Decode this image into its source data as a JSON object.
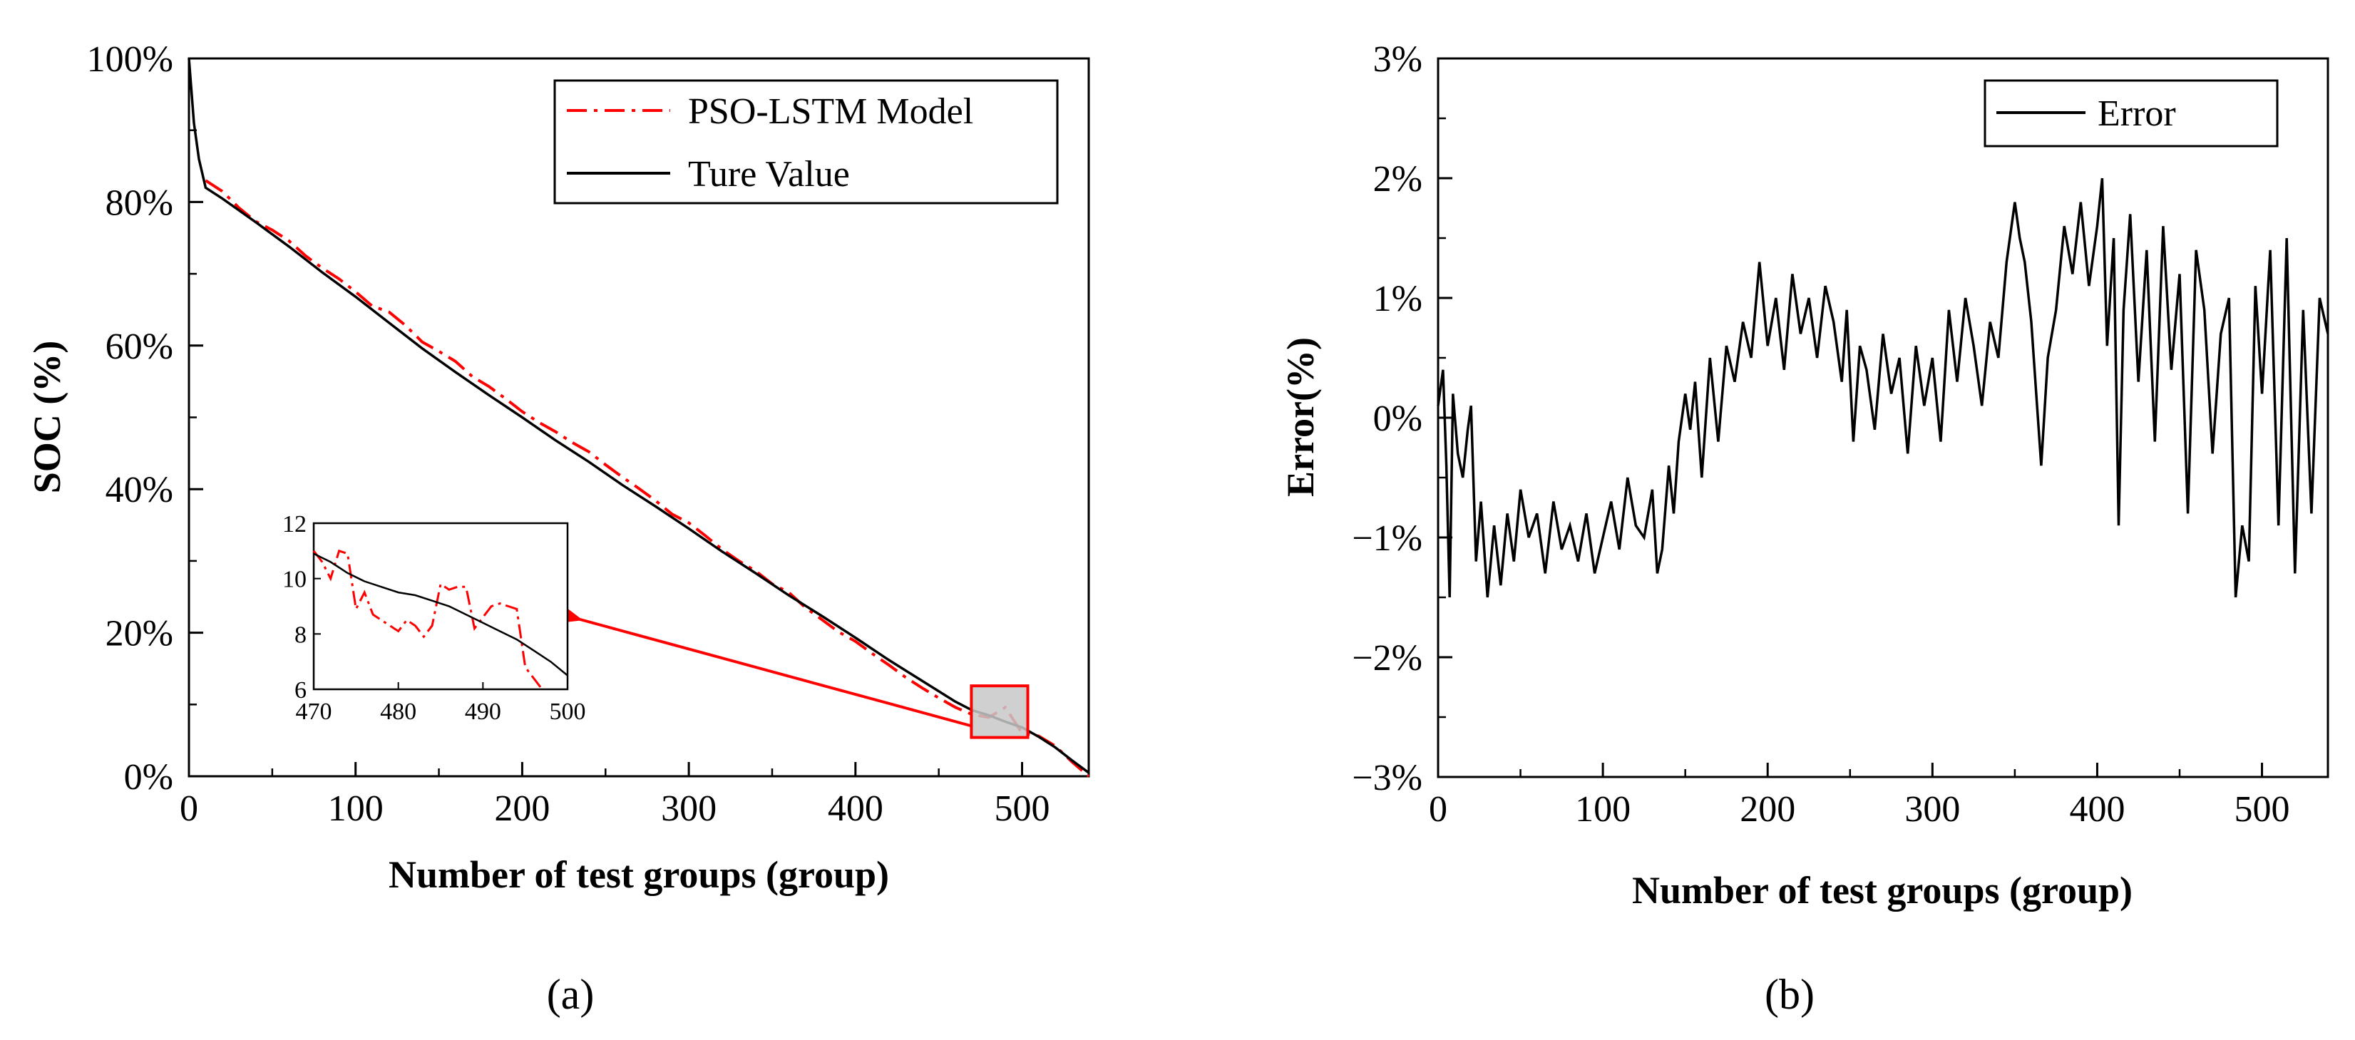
{
  "colors": {
    "true_line": "#000000",
    "model_line": "#ff0000",
    "zoom_box": "#c8c8c8"
  },
  "panels": {
    "a": {
      "label": "(a)"
    },
    "b": {
      "label": "(b)"
    }
  },
  "chart_data": [
    {
      "id": "a",
      "type": "line",
      "xlabel": "Number of test groups (group)",
      "ylabel": "SOC (%)",
      "xlim": [
        0,
        540
      ],
      "ylim": [
        0,
        100
      ],
      "xticks": [
        0,
        100,
        200,
        300,
        400,
        500
      ],
      "xtick_labels": [
        "0",
        "100",
        "200",
        "300",
        "400",
        "500"
      ],
      "yticks": [
        0,
        20,
        40,
        60,
        80,
        100
      ],
      "ytick_labels": [
        "0%",
        "20%",
        "40%",
        "60%",
        "80%",
        "100%"
      ],
      "legend": {
        "placement": "top-right",
        "entries": [
          "PSO-LSTM Model",
          "Ture Value"
        ]
      },
      "series": [
        {
          "name": "Ture Value",
          "x": [
            0,
            3,
            6,
            10,
            20,
            40,
            60,
            80,
            100,
            120,
            140,
            160,
            180,
            200,
            220,
            240,
            260,
            280,
            300,
            320,
            340,
            360,
            380,
            400,
            420,
            440,
            460,
            470,
            480,
            490,
            500,
            510,
            520,
            530,
            540
          ],
          "y": [
            100,
            91,
            86,
            82,
            80.5,
            77.2,
            73.8,
            70.2,
            66.8,
            63.2,
            59.6,
            56.3,
            53.1,
            50.0,
            46.8,
            43.8,
            40.6,
            37.6,
            34.5,
            31.3,
            28.3,
            25.2,
            22.3,
            19.3,
            16.2,
            13.3,
            10.4,
            9.2,
            8.5,
            7.6,
            6.8,
            5.5,
            4.0,
            2.2,
            0.5
          ]
        },
        {
          "name": "PSO-LSTM Model",
          "x": [
            10,
            20,
            30,
            40,
            50,
            60,
            70,
            80,
            90,
            100,
            110,
            120,
            130,
            140,
            150,
            160,
            170,
            180,
            190,
            200,
            210,
            220,
            230,
            240,
            250,
            260,
            270,
            280,
            290,
            300,
            310,
            320,
            330,
            340,
            350,
            360,
            370,
            380,
            390,
            400,
            410,
            420,
            430,
            440,
            450,
            460,
            470,
            480,
            490,
            500,
            510,
            520,
            530,
            540
          ],
          "y": [
            83.0,
            81.5,
            79.2,
            77.3,
            76.1,
            74.6,
            72.5,
            70.8,
            69.3,
            67.5,
            65.5,
            64.7,
            62.8,
            60.5,
            59.2,
            57.8,
            55.7,
            54.3,
            52.6,
            50.8,
            49.3,
            48.0,
            46.5,
            45.2,
            43.4,
            41.7,
            40.1,
            38.4,
            36.5,
            35.3,
            33.5,
            31.6,
            30.0,
            28.6,
            26.8,
            25.6,
            23.5,
            21.8,
            20.1,
            18.8,
            17.1,
            15.5,
            13.8,
            12.3,
            10.9,
            9.6,
            8.6,
            8.2,
            9.6,
            6.0,
            5.6,
            4.2,
            2.0,
            0.0
          ]
        }
      ],
      "zoom_region": {
        "x": [
          473,
          500
        ],
        "y": [
          6,
          12
        ]
      },
      "inset": {
        "xlim": [
          470,
          500
        ],
        "ylim": [
          6,
          12
        ],
        "xticks": [
          470,
          480,
          490,
          500
        ],
        "xtick_labels": [
          "470",
          "480",
          "490",
          "500"
        ],
        "yticks": [
          6,
          8,
          10,
          12
        ],
        "ytick_labels": [
          "6",
          "8",
          "10",
          "12"
        ],
        "series": [
          {
            "name": "Ture Value",
            "x": [
              470,
              472,
              474,
              476,
              478,
              480,
              482,
              484,
              486,
              488,
              490,
              492,
              494,
              496,
              498,
              500
            ],
            "y": [
              10.9,
              10.6,
              10.2,
              9.9,
              9.7,
              9.5,
              9.4,
              9.2,
              9.0,
              8.7,
              8.4,
              8.1,
              7.8,
              7.4,
              7.0,
              6.5
            ]
          },
          {
            "name": "PSO-LSTM Model",
            "x": [
              470,
              471,
              472,
              473,
              474,
              475,
              476,
              477,
              478,
              479,
              480,
              481,
              482,
              483,
              484,
              485,
              486,
              487,
              488,
              489,
              490,
              491,
              492,
              493,
              494,
              495,
              496,
              497
            ],
            "y": [
              11.0,
              10.6,
              10.0,
              11.0,
              10.9,
              8.9,
              9.5,
              8.7,
              8.5,
              8.3,
              8.1,
              8.5,
              8.3,
              7.9,
              8.3,
              9.8,
              9.6,
              9.7,
              9.7,
              8.2,
              8.6,
              9.0,
              9.1,
              9.0,
              8.9,
              6.8,
              6.4,
              6.0
            ]
          }
        ]
      }
    },
    {
      "id": "b",
      "type": "line",
      "xlabel": "Number of test groups (group)",
      "ylabel": "Error(%)",
      "xlim": [
        0,
        540
      ],
      "ylim": [
        -3,
        3
      ],
      "xticks": [
        0,
        100,
        200,
        300,
        400,
        500
      ],
      "xtick_labels": [
        "0",
        "100",
        "200",
        "300",
        "400",
        "500"
      ],
      "yticks": [
        -3,
        -2,
        -1,
        0,
        1,
        2,
        3
      ],
      "ytick_labels": [
        "−3%",
        "−2%",
        "−1%",
        "0%",
        "1%",
        "2%",
        "3%"
      ],
      "legend": {
        "placement": "top-right",
        "entries": [
          "Error"
        ]
      },
      "series": [
        {
          "name": "Error",
          "x": [
            0,
            3,
            5,
            7,
            9,
            12,
            15,
            18,
            20,
            23,
            26,
            30,
            34,
            38,
            42,
            46,
            50,
            55,
            60,
            65,
            70,
            75,
            80,
            85,
            90,
            95,
            100,
            105,
            110,
            115,
            120,
            125,
            130,
            133,
            136,
            140,
            143,
            146,
            150,
            153,
            156,
            160,
            165,
            170,
            175,
            180,
            185,
            190,
            195,
            200,
            205,
            210,
            215,
            220,
            225,
            230,
            235,
            240,
            245,
            248,
            252,
            256,
            260,
            265,
            270,
            275,
            280,
            285,
            290,
            295,
            300,
            305,
            310,
            315,
            320,
            325,
            330,
            335,
            340,
            345,
            350,
            353,
            356,
            360,
            363,
            366,
            370,
            375,
            380,
            385,
            390,
            395,
            400,
            403,
            406,
            410,
            413,
            416,
            420,
            425,
            430,
            435,
            440,
            445,
            450,
            455,
            460,
            465,
            470,
            475,
            480,
            484,
            488,
            492,
            496,
            500,
            505,
            510,
            515,
            520,
            525,
            530,
            535,
            540
          ],
          "y": [
            0.1,
            0.4,
            -0.4,
            -1.5,
            0.2,
            -0.3,
            -0.5,
            -0.1,
            0.1,
            -1.2,
            -0.7,
            -1.5,
            -0.9,
            -1.4,
            -0.8,
            -1.2,
            -0.6,
            -1.0,
            -0.8,
            -1.3,
            -0.7,
            -1.1,
            -0.9,
            -1.2,
            -0.8,
            -1.3,
            -1.0,
            -0.7,
            -1.1,
            -0.5,
            -0.9,
            -1.0,
            -0.6,
            -1.3,
            -1.1,
            -0.4,
            -0.8,
            -0.2,
            0.2,
            -0.1,
            0.3,
            -0.5,
            0.5,
            -0.2,
            0.6,
            0.3,
            0.8,
            0.5,
            1.3,
            0.6,
            1.0,
            0.4,
            1.2,
            0.7,
            1.0,
            0.5,
            1.1,
            0.8,
            0.3,
            0.9,
            -0.2,
            0.6,
            0.4,
            -0.1,
            0.7,
            0.2,
            0.5,
            -0.3,
            0.6,
            0.1,
            0.5,
            -0.2,
            0.9,
            0.3,
            1.0,
            0.6,
            0.1,
            0.8,
            0.5,
            1.3,
            1.8,
            1.5,
            1.3,
            0.8,
            0.2,
            -0.4,
            0.5,
            0.9,
            1.6,
            1.2,
            1.8,
            1.1,
            1.6,
            2.0,
            0.6,
            1.5,
            -0.9,
            0.9,
            1.7,
            0.3,
            1.4,
            -0.2,
            1.6,
            0.4,
            1.2,
            -0.8,
            1.4,
            0.9,
            -0.3,
            0.7,
            1.0,
            -1.5,
            -0.9,
            -1.2,
            1.1,
            0.2,
            1.4,
            -0.9,
            1.5,
            -1.3,
            0.9,
            -0.8,
            1.0,
            0.7
          ]
        }
      ]
    }
  ]
}
